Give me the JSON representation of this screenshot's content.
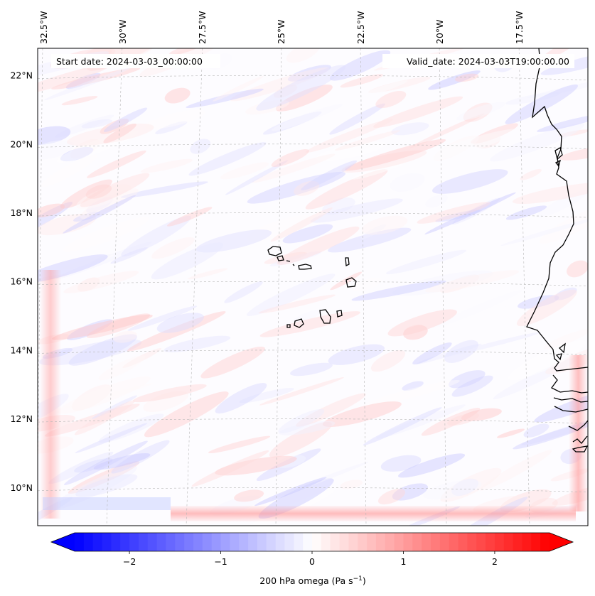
{
  "map": {
    "start_date": "Start date: 2024-03-03_00:00:00",
    "valid_date": "Valid_date: 2024-03-03T19:00:00.00",
    "lon_labels": [
      "32.5°W",
      "30°W",
      "27.5°W",
      "25°W",
      "22.5°W",
      "20°W",
      "17.5°W"
    ],
    "lat_labels": [
      "22°N",
      "20°N",
      "18°N",
      "16°N",
      "14°N",
      "12°N",
      "10°N"
    ],
    "lat_values": [
      22,
      20,
      18,
      16,
      14,
      12,
      10
    ],
    "lat_range": [
      8.9,
      22.8
    ],
    "field_range": [
      -0.6,
      0.6
    ]
  },
  "colorbar": {
    "label": "200 hPa omega (Pa s",
    "label_sup": "−1",
    "label_end": ")",
    "ticks": [
      "−2",
      "−1",
      "0",
      "1",
      "2"
    ],
    "tick_values": [
      -2,
      -1,
      0,
      1,
      2
    ],
    "vmin": -2.6,
    "vmax": 2.6,
    "colors": {
      "low": "#0000ff",
      "mid": "#ffffff",
      "high": "#ff0000"
    }
  }
}
